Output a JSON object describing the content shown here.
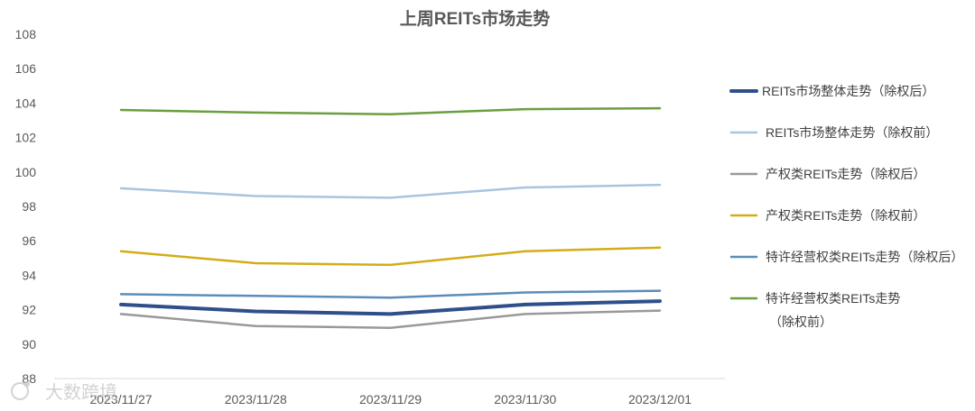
{
  "chart_data": {
    "type": "line",
    "title": "上周REITs市场走势",
    "categories": [
      "2023/11/27",
      "2023/11/28",
      "2023/11/29",
      "2023/11/30",
      "2023/12/01"
    ],
    "ylim": [
      88,
      108
    ],
    "yticks": [
      88,
      90,
      92,
      94,
      96,
      98,
      100,
      102,
      104,
      106,
      108
    ],
    "grid": false,
    "legend_position": "right",
    "series": [
      {
        "name": "REITs市场整体走势（除权后）",
        "color": "#2F4F8A",
        "width": 4,
        "values": [
          92.3,
          91.9,
          91.75,
          92.3,
          92.5
        ]
      },
      {
        "name": "REITs市场整体走势（除权前）",
        "color": "#A9C4E0",
        "width": 2.5,
        "values": [
          99.05,
          98.6,
          98.5,
          99.1,
          99.25
        ]
      },
      {
        "name": "产权类REITs走势（除权后）",
        "color": "#999999",
        "width": 2.5,
        "values": [
          91.75,
          91.05,
          90.95,
          91.75,
          91.95
        ]
      },
      {
        "name": "产权类REITs走势（除权前）",
        "color": "#D4AC1A",
        "width": 2.5,
        "values": [
          95.4,
          94.7,
          94.6,
          95.4,
          95.6
        ]
      },
      {
        "name": "特许经营权类REITs走势（除权后）",
        "color": "#5B8DB8",
        "width": 2.5,
        "values": [
          92.9,
          92.8,
          92.7,
          93.0,
          93.1
        ]
      },
      {
        "name_lines": [
          "特许经营权类REITs走势",
          "（除权前）"
        ],
        "name": "特许经营权类REITs走势（除权前）",
        "color": "#6A9E3F",
        "width": 2.5,
        "values": [
          103.6,
          103.45,
          103.35,
          103.65,
          103.7
        ]
      }
    ]
  },
  "watermark": {
    "text": "大数跨境",
    "icon": "logo-icon"
  }
}
